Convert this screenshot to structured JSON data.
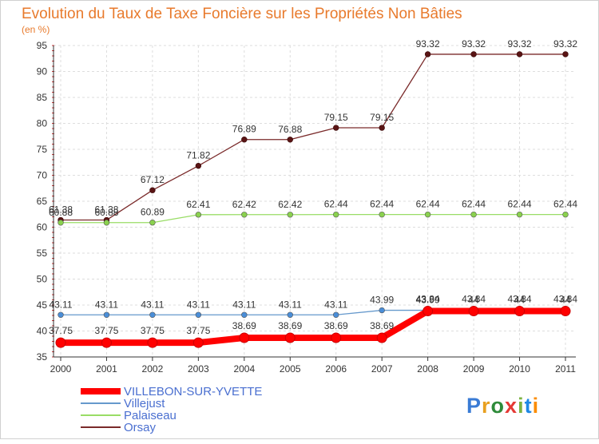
{
  "chart_data": {
    "type": "line",
    "title": "Evolution du Taux de Taxe Foncière sur les Propriétés Non Bâties",
    "subtitle": "(en %)",
    "x": [
      "2000",
      "2001",
      "2002",
      "2003",
      "2004",
      "2005",
      "2006",
      "2007",
      "2008",
      "2009",
      "2010",
      "2011"
    ],
    "ylim": [
      35,
      95
    ],
    "yticks": [
      35,
      40,
      45,
      50,
      55,
      60,
      65,
      70,
      75,
      80,
      85,
      90,
      95
    ],
    "grid": true,
    "legend_position": "bottom-left",
    "series": [
      {
        "name": "VILLEBON-SUR-YVETTE",
        "color": "#ff0000",
        "values": [
          37.75,
          37.75,
          37.75,
          37.75,
          38.69,
          38.69,
          38.69,
          38.69,
          43.84,
          43.84,
          43.84,
          43.84
        ],
        "labels": [
          "37.75",
          "37.75",
          "37.75",
          "37.75",
          "38.69",
          "38.69",
          "38.69",
          "38.69",
          "43.84",
          "43.84",
          "43.84",
          "43.84"
        ]
      },
      {
        "name": "Villejust",
        "color": "#6699cc",
        "values": [
          43.11,
          43.11,
          43.11,
          43.11,
          43.11,
          43.11,
          43.11,
          43.99,
          43.99,
          44,
          44,
          44
        ],
        "labels": [
          "43.11",
          "43.11",
          "43.11",
          "43.11",
          "43.11",
          "43.11",
          "43.11",
          "43.99",
          "43.99",
          "44",
          "44",
          "44"
        ]
      },
      {
        "name": "Palaiseau",
        "color": "#99dd66",
        "values": [
          60.88,
          60.88,
          60.89,
          62.41,
          62.42,
          62.42,
          62.44,
          62.44,
          62.44,
          62.44,
          62.44,
          62.44
        ],
        "labels": [
          "60.88",
          "60.88",
          "60.89",
          "62.41",
          "62.42",
          "62.42",
          "62.44",
          "62.44",
          "62.44",
          "62.44",
          "62.44",
          "62.44"
        ]
      },
      {
        "name": "Orsay",
        "color": "#7a2a2a",
        "values": [
          61.38,
          61.38,
          67.12,
          71.82,
          76.89,
          76.88,
          79.15,
          79.15,
          93.32,
          93.32,
          93.32,
          93.32
        ],
        "labels": [
          "61.38",
          "61.38",
          "67.12",
          "71.82",
          "76.89",
          "76.88",
          "79.15",
          "79.15",
          "93.32",
          "93.32",
          "93.32",
          "93.32"
        ]
      }
    ]
  },
  "logo": {
    "text": "Proxiti"
  }
}
